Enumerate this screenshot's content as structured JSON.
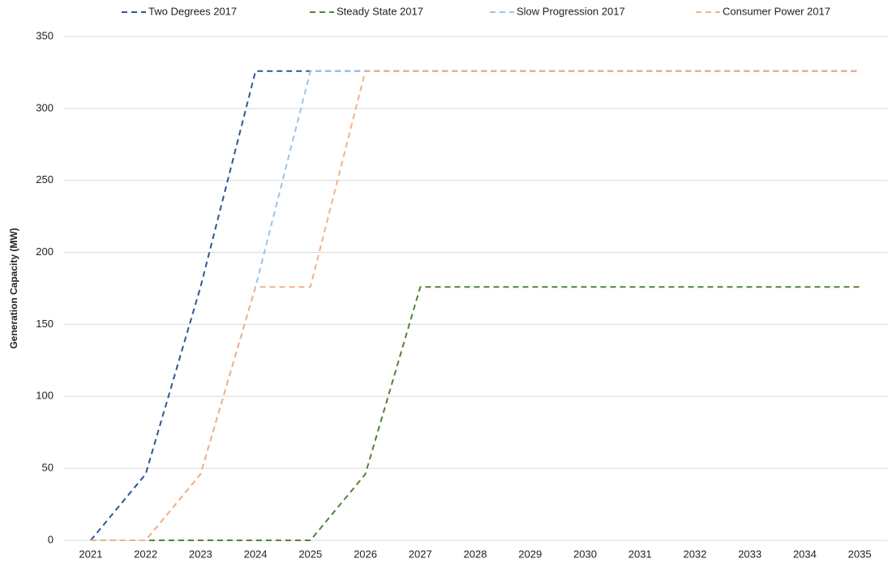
{
  "chart_data": {
    "type": "line",
    "y_label": "Generation Capacity (MW)",
    "categories": [
      "2021",
      "2022",
      "2023",
      "2024",
      "2025",
      "2026",
      "2027",
      "2028",
      "2029",
      "2030",
      "2031",
      "2032",
      "2033",
      "2034",
      "2035"
    ],
    "series": [
      {
        "name": "Two Degrees 2017",
        "color": "#2f5597",
        "values": [
          0,
          46,
          176,
          326,
          326,
          326,
          326,
          326,
          326,
          326,
          326,
          326,
          326,
          326,
          326
        ]
      },
      {
        "name": "Steady State 2017",
        "color": "#548235",
        "values": [
          0,
          0,
          0,
          0,
          0,
          46,
          176,
          176,
          176,
          176,
          176,
          176,
          176,
          176,
          176
        ]
      },
      {
        "name": "Slow Progression 2017",
        "color": "#9dc3e6",
        "values": [
          0,
          0,
          46,
          176,
          326,
          326,
          326,
          326,
          326,
          326,
          326,
          326,
          326,
          326,
          326
        ]
      },
      {
        "name": "Consumer Power 2017",
        "color": "#f4b183",
        "values": [
          0,
          0,
          46,
          176,
          176,
          326,
          326,
          326,
          326,
          326,
          326,
          326,
          326,
          326,
          326
        ]
      }
    ],
    "ylim": [
      0,
      350
    ],
    "yticks": [
      0,
      50,
      100,
      150,
      200,
      250,
      300,
      350
    ],
    "grid": true,
    "legend": "top"
  }
}
